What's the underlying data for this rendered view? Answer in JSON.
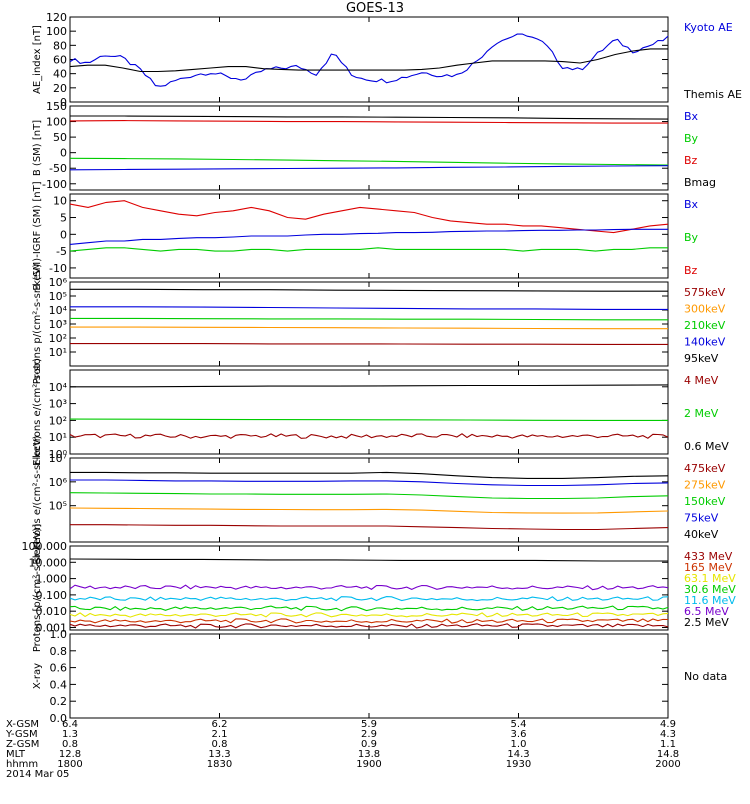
{
  "title": "GOES-13",
  "colors": {
    "black": "#000000",
    "blue": "#0000dd",
    "green": "#00cc00",
    "red": "#dd0000",
    "orange": "#ff9900",
    "cyan": "#00bbee",
    "purple": "#7700cc",
    "darkred": "#990000",
    "brown": "#cc3300",
    "yellow": "#e6e600"
  },
  "ephemeris": {
    "labels": [
      "X-GSM",
      "Y-GSM",
      "Z-GSM",
      "MLT",
      "hhmm",
      "2014 Mar 05"
    ],
    "columns": [
      {
        "x": "6.4",
        "y": "1.3",
        "z": "0.8",
        "mlt": "12.8",
        "hhmm": "1800"
      },
      {
        "x": "6.2",
        "y": "2.1",
        "z": "0.8",
        "mlt": "13.3",
        "hhmm": "1830"
      },
      {
        "x": "5.9",
        "y": "2.9",
        "z": "0.9",
        "mlt": "13.8",
        "hhmm": "1900"
      },
      {
        "x": "5.4",
        "y": "3.6",
        "z": "1.0",
        "mlt": "14.3",
        "hhmm": "1930"
      },
      {
        "x": "4.9",
        "y": "4.3",
        "z": "1.1",
        "mlt": "14.8",
        "hhmm": "2000"
      }
    ]
  },
  "chart_data": [
    {
      "type": "line",
      "ylabel": "AE_index [nT]",
      "yscale": "linear",
      "ylim": [
        0,
        120
      ],
      "yticks": [
        "0",
        "20",
        "40",
        "60",
        "80",
        "100",
        "120"
      ],
      "yvals": [
        0,
        20,
        40,
        60,
        80,
        100,
        120
      ],
      "series": [
        {
          "name": "Kyoto AE",
          "color": "#0000dd",
          "noisy": true,
          "y": [
            60,
            55,
            67,
            62,
            45,
            20,
            30,
            38,
            42,
            35,
            32,
            45,
            48,
            50,
            40,
            70,
            38,
            32,
            30,
            35,
            42,
            38,
            38,
            55,
            80,
            92,
            95,
            82,
            50,
            45,
            68,
            88,
            72,
            80,
            90
          ]
        },
        {
          "name": "Themis AE",
          "color": "#000000",
          "y": [
            50,
            52,
            52,
            48,
            43,
            43,
            44,
            46,
            48,
            50,
            50,
            47,
            46,
            45,
            45,
            45,
            45,
            45,
            45,
            45,
            46,
            48,
            52,
            55,
            58,
            58,
            58,
            58,
            57,
            55,
            60,
            67,
            72,
            75,
            75
          ]
        }
      ],
      "legend": [
        {
          "text": "Kyoto AE",
          "color": "#0000dd"
        },
        {
          "text": "Themis AE",
          "color": "#000000"
        }
      ]
    },
    {
      "type": "line",
      "ylabel": "B (SM) [nT]",
      "yscale": "linear",
      "ylim": [
        -120,
        150
      ],
      "yticks": [
        "-100",
        "-50",
        "0",
        "50",
        "100",
        "150"
      ],
      "yvals": [
        -100,
        -50,
        0,
        50,
        100,
        150
      ],
      "series": [
        {
          "name": "Bmag",
          "color": "#000000",
          "y": [
            118,
            118,
            117,
            116,
            115,
            115,
            114,
            113,
            112,
            110,
            109,
            108
          ]
        },
        {
          "name": "Bz",
          "color": "#dd0000",
          "y": [
            102,
            103,
            102,
            101,
            100,
            100,
            99,
            98,
            97,
            96,
            95,
            95
          ]
        },
        {
          "name": "By",
          "color": "#00cc00",
          "y": [
            -18,
            -19,
            -20,
            -22,
            -24,
            -26,
            -28,
            -31,
            -34,
            -36,
            -38,
            -40
          ]
        },
        {
          "name": "Bx",
          "color": "#0000dd",
          "y": [
            -55,
            -54,
            -53,
            -52,
            -51,
            -50,
            -49,
            -47,
            -46,
            -44,
            -43,
            -42
          ]
        }
      ],
      "legend": [
        {
          "text": "Bx",
          "color": "#0000dd"
        },
        {
          "text": "By",
          "color": "#00cc00"
        },
        {
          "text": "Bz",
          "color": "#dd0000"
        },
        {
          "text": "Bmag",
          "color": "#000000"
        }
      ]
    },
    {
      "type": "line",
      "ylabel": "B (SM)-IGRF (SM) [nT]",
      "yscale": "linear",
      "ylim": [
        -13,
        12
      ],
      "yticks": [
        "-10",
        "-5",
        "0",
        "5",
        "10"
      ],
      "yvals": [
        -10,
        -5,
        0,
        5,
        10
      ],
      "series": [
        {
          "name": "Bz",
          "color": "#dd0000",
          "y": [
            9,
            8,
            9.5,
            10,
            8,
            7,
            6,
            5.5,
            6.5,
            7,
            8,
            7,
            5,
            4.5,
            6,
            7,
            8,
            7.5,
            7,
            6.5,
            5,
            4,
            3.5,
            3,
            3,
            2.5,
            2.5,
            2,
            1.5,
            1,
            0.5,
            1.5,
            2.5,
            3
          ]
        },
        {
          "name": "Bx",
          "color": "#0000dd",
          "y": [
            -3,
            -2.5,
            -2,
            -2,
            -1.5,
            -1.5,
            -1.2,
            -1,
            -1,
            -0.8,
            -0.5,
            -0.5,
            -0.5,
            -0.2,
            0,
            0,
            0.2,
            0.3,
            0.5,
            0.5,
            0.6,
            0.8,
            0.9,
            1,
            1,
            1.1,
            1.2,
            1.2,
            1.3,
            1.3,
            1.4,
            1.5,
            1.5,
            1.5
          ]
        },
        {
          "name": "By",
          "color": "#00cc00",
          "y": [
            -5,
            -4.5,
            -4,
            -4,
            -4.5,
            -5,
            -4.5,
            -4.5,
            -5,
            -5,
            -4.5,
            -4.5,
            -5,
            -4.5,
            -4.5,
            -4.5,
            -4.5,
            -4,
            -4.5,
            -4.5,
            -4.5,
            -4.5,
            -4.5,
            -4.5,
            -4.5,
            -5,
            -4.5,
            -4.5,
            -4.5,
            -5,
            -4.5,
            -4.5,
            -4,
            -4
          ]
        }
      ],
      "legend": [
        {
          "text": "Bx",
          "color": "#0000dd"
        },
        {
          "text": "By",
          "color": "#00cc00"
        },
        {
          "text": "Bz",
          "color": "#dd0000"
        }
      ]
    },
    {
      "type": "line",
      "ylabel": "Protons p/(cm²-s-sr-keV)",
      "yscale": "log",
      "ylim": [
        1,
        1000000
      ],
      "yticks": [
        "10¹",
        "10²",
        "10³",
        "10⁴",
        "10⁵",
        "10⁶"
      ],
      "yvals": [
        10,
        100,
        1000,
        10000,
        100000,
        1000000
      ],
      "series": [
        {
          "name": "95keV",
          "color": "#000000",
          "y": [
            300000,
            300000,
            280000,
            280000,
            260000,
            250000,
            240000,
            230000,
            220000,
            220000
          ]
        },
        {
          "name": "140keV",
          "color": "#0000dd",
          "y": [
            17000,
            17000,
            16000,
            15000,
            14000,
            13000,
            12000,
            12000,
            11000,
            11000
          ]
        },
        {
          "name": "210keV",
          "color": "#00cc00",
          "y": [
            2500,
            2500,
            2400,
            2300,
            2300,
            2200,
            2200,
            2100,
            2000,
            2000
          ]
        },
        {
          "name": "300keV",
          "color": "#ff9900",
          "y": [
            600,
            600,
            580,
            560,
            540,
            520,
            500,
            480,
            460,
            460
          ]
        },
        {
          "name": "575keV",
          "color": "#990000",
          "y": [
            40,
            40,
            40,
            38,
            38,
            37,
            36,
            36,
            35,
            35
          ]
        }
      ],
      "legend": [
        {
          "text": "575keV",
          "color": "#990000"
        },
        {
          "text": "300keV",
          "color": "#ff9900"
        },
        {
          "text": "210keV",
          "color": "#00cc00"
        },
        {
          "text": "140keV",
          "color": "#0000dd"
        },
        {
          "text": "95keV",
          "color": "#000000"
        }
      ]
    },
    {
      "type": "line",
      "ylabel": "Electrons e/(cm²-s-sr)",
      "yscale": "log",
      "ylim": [
        1,
        100000
      ],
      "yticks": [
        "10⁰",
        "10¹",
        "10²",
        "10³",
        "10⁴"
      ],
      "yvals": [
        1,
        10,
        100,
        1000,
        10000
      ],
      "series": [
        {
          "name": "0.6 MeV",
          "color": "#000000",
          "y": [
            10000,
            10000,
            10500,
            11000,
            11000,
            11500,
            12000,
            12000,
            12500,
            13000
          ]
        },
        {
          "name": "2 MeV",
          "color": "#00cc00",
          "y": [
            120,
            118,
            115,
            112,
            110,
            108,
            105,
            102,
            100,
            100
          ]
        },
        {
          "name": "4 MeV",
          "color": "#990000",
          "noisy": true,
          "y": [
            12,
            12,
            11,
            12,
            11,
            12,
            12,
            11,
            12,
            11
          ]
        }
      ],
      "legend": [
        {
          "text": "4 MeV",
          "color": "#990000"
        },
        {
          "text": "2 MeV",
          "color": "#00cc00"
        },
        {
          "text": "0.6 MeV",
          "color": "#000000"
        }
      ]
    },
    {
      "type": "line",
      "ylabel": "Electrons e/(cm²-s-sr-keV)",
      "yscale": "log",
      "ylim": [
        3000,
        10000000
      ],
      "yticks": [
        "10⁵",
        "10⁶",
        "10⁷"
      ],
      "yvals": [
        100000,
        1000000,
        10000000
      ],
      "series": [
        {
          "name": "40keV",
          "color": "#000000",
          "y": [
            2500000,
            2500000,
            2400000,
            2400000,
            2300000,
            2300000,
            2300000,
            2300000,
            2300000,
            2500000,
            2200000,
            1800000,
            1500000,
            1400000,
            1400000,
            1500000,
            1700000,
            1800000
          ]
        },
        {
          "name": "75keV",
          "color": "#0000dd",
          "y": [
            1200000,
            1200000,
            1150000,
            1100000,
            1100000,
            1050000,
            1050000,
            1050000,
            1100000,
            1100000,
            1000000,
            850000,
            750000,
            700000,
            700000,
            750000,
            850000,
            900000
          ]
        },
        {
          "name": "150keV",
          "color": "#00cc00",
          "y": [
            350000,
            340000,
            330000,
            320000,
            310000,
            310000,
            300000,
            300000,
            300000,
            310000,
            280000,
            240000,
            210000,
            200000,
            200000,
            210000,
            240000,
            260000
          ]
        },
        {
          "name": "275keV",
          "color": "#ff9900",
          "y": [
            80000,
            78000,
            76000,
            74000,
            72000,
            70000,
            69000,
            68000,
            68000,
            70000,
            65000,
            58000,
            52000,
            50000,
            49000,
            50000,
            55000,
            60000
          ]
        },
        {
          "name": "475keV",
          "color": "#990000",
          "y": [
            16000,
            16000,
            15500,
            15000,
            15000,
            14500,
            14000,
            14000,
            14000,
            14000,
            13000,
            12000,
            11000,
            10500,
            10000,
            10000,
            11000,
            12000
          ]
        }
      ],
      "legend": [
        {
          "text": "475keV",
          "color": "#990000"
        },
        {
          "text": "275keV",
          "color": "#ff9900"
        },
        {
          "text": "150keV",
          "color": "#00cc00"
        },
        {
          "text": "75keV",
          "color": "#0000dd"
        },
        {
          "text": "40keV",
          "color": "#000000"
        }
      ]
    },
    {
      "type": "line",
      "ylabel": "Protons [p/(cm²-s-sr-keV)]",
      "yscale": "log",
      "ylim": [
        0.0007,
        100
      ],
      "yticks": [
        "0.001",
        "0.010",
        "0.100",
        "1.000",
        "10.000",
        "100.000"
      ],
      "yvals": [
        0.001,
        0.01,
        0.1,
        1,
        10,
        100
      ],
      "series": [
        {
          "name": "2.5 MeV",
          "color": "#000000",
          "y": [
            16,
            15,
            15,
            14,
            14,
            13,
            13,
            13,
            12,
            12
          ]
        },
        {
          "name": "6.5 MeV",
          "color": "#7700cc",
          "noisy": true,
          "y": [
            0.3,
            0.28,
            0.3,
            0.27,
            0.29,
            0.28,
            0.3,
            0.28,
            0.27,
            0.29
          ]
        },
        {
          "name": "11.6 MeV",
          "color": "#00bbee",
          "noisy": true,
          "y": [
            0.06,
            0.055,
            0.06,
            0.055,
            0.058,
            0.06,
            0.055,
            0.058,
            0.056,
            0.06
          ]
        },
        {
          "name": "30.6 MeV",
          "color": "#00cc00",
          "noisy": true,
          "y": [
            0.015,
            0.014,
            0.015,
            0.016,
            0.014,
            0.015,
            0.014,
            0.015,
            0.016,
            0.015
          ]
        },
        {
          "name": "63.1 MeV",
          "color": "#e6e600",
          "noisy": true,
          "y": [
            0.006,
            0.0055,
            0.006,
            0.0058,
            0.006,
            0.0056,
            0.006,
            0.0058,
            0.006,
            0.0059
          ]
        },
        {
          "name": "165 MeV",
          "color": "#cc3300",
          "noisy": true,
          "y": [
            0.0025,
            0.0024,
            0.0025,
            0.0026,
            0.0024,
            0.0025,
            0.0024,
            0.0025,
            0.0026,
            0.0025
          ]
        },
        {
          "name": "433 MeV",
          "color": "#990000",
          "noisy": true,
          "y": [
            0.0013,
            0.0013,
            0.0012,
            0.0013,
            0.0013,
            0.0012,
            0.0013,
            0.0013,
            0.0012,
            0.0013
          ]
        }
      ],
      "legend": [
        {
          "text": "433 MeV",
          "color": "#990000"
        },
        {
          "text": "165 MeV",
          "color": "#cc3300"
        },
        {
          "text": "63.1 MeV",
          "color": "#e6e600"
        },
        {
          "text": "30.6 MeV",
          "color": "#00cc00"
        },
        {
          "text": "11.6 MeV",
          "color": "#00bbee"
        },
        {
          "text": "6.5 MeV",
          "color": "#7700cc"
        },
        {
          "text": "2.5 MeV",
          "color": "#000000"
        }
      ]
    },
    {
      "type": "line",
      "ylabel": "X-ray",
      "yscale": "linear",
      "ylim": [
        0,
        1
      ],
      "yticks": [
        "0.0",
        "0.2",
        "0.4",
        "0.6",
        "0.8",
        "1.0"
      ],
      "yvals": [
        0,
        0.2,
        0.4,
        0.6,
        0.8,
        1.0
      ],
      "series": [],
      "legend": [
        {
          "text": "No data",
          "color": "#000000"
        }
      ]
    }
  ]
}
